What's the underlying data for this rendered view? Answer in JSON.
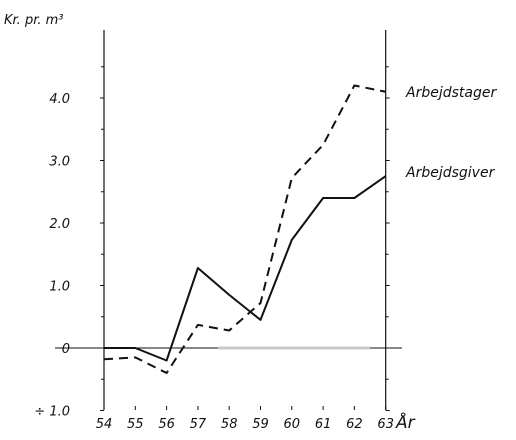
{
  "chart_data": {
    "type": "line",
    "ylabel": "Kr. pr. m³",
    "xlabel": "År",
    "categories": [
      "54",
      "55",
      "56",
      "57",
      "58",
      "59",
      "60",
      "61",
      "62",
      "63"
    ],
    "ylim": [
      -1.0,
      5.0
    ],
    "ytick_values": [
      -1.0,
      0,
      1.0,
      2.0,
      3.0,
      4.0
    ],
    "ytick_labels": [
      "÷ 1.0",
      "0",
      "1.0",
      "2.0",
      "3.0",
      "4.0"
    ],
    "grid": false,
    "series": [
      {
        "name": "Arbejdstager",
        "style": "dashed",
        "values": [
          -0.18,
          -0.15,
          -0.4,
          0.37,
          0.28,
          0.72,
          2.72,
          3.25,
          4.2,
          4.1
        ]
      },
      {
        "name": "Arbejdsgiver",
        "style": "solid",
        "values": [
          0.0,
          0.0,
          -0.2,
          1.28,
          0.85,
          0.45,
          1.73,
          2.4,
          2.4,
          2.75
        ]
      }
    ],
    "colors": {
      "line": "#111111",
      "zero_marker": "#c8c8c8"
    }
  }
}
